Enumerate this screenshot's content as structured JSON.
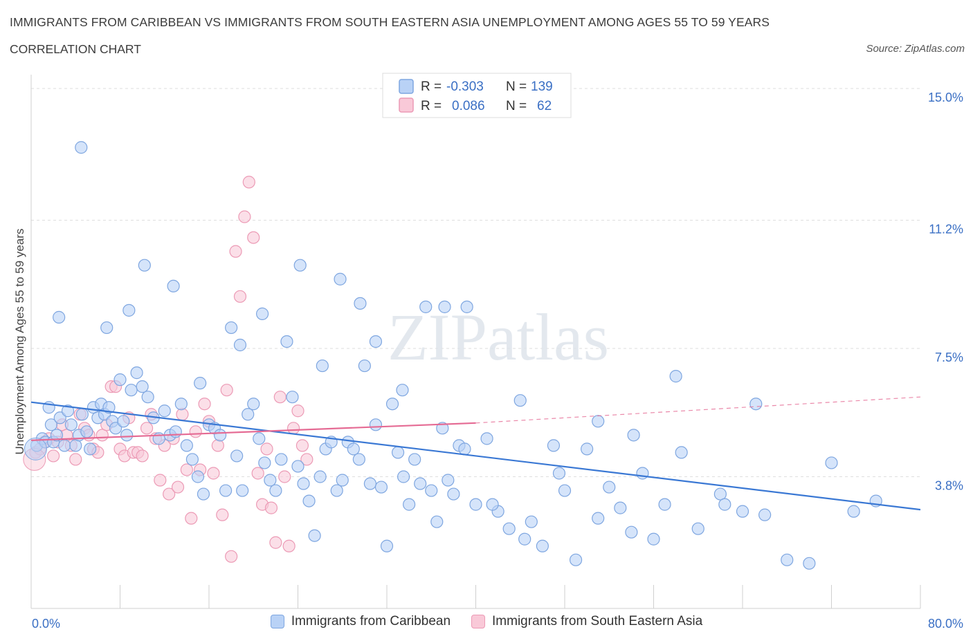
{
  "header": {
    "title": "IMMIGRANTS FROM CARIBBEAN VS IMMIGRANTS FROM SOUTH EASTERN ASIA UNEMPLOYMENT AMONG AGES 55 TO 59 YEARS",
    "subtitle": "CORRELATION CHART",
    "source": "Source: ZipAtlas.com"
  },
  "colors": {
    "blue_fill": "#b9d2f6",
    "blue_stroke": "#7ea6e0",
    "blue_line": "#3a78d4",
    "pink_fill": "#f9c9d8",
    "pink_stroke": "#ec9ab5",
    "pink_line": "#e56b94",
    "axis_label": "#3a6fc4"
  },
  "legend_top": {
    "rows": [
      {
        "r_label": "R =",
        "r_value": "-0.303",
        "n_label": "N =",
        "n_value": "139"
      },
      {
        "r_label": "R =",
        "r_value": "0.086",
        "n_label": "N =",
        "n_value": "62"
      }
    ]
  },
  "chart_data": {
    "type": "scatter",
    "ylabel": "Unemployment Among Ages 55 to 59 years",
    "x_tick_labels": [
      "0.0%",
      "80.0%"
    ],
    "y_tick_labels": [
      "15.0%",
      "11.2%",
      "7.5%",
      "3.8%"
    ],
    "y_ticks": [
      15.0,
      11.2,
      7.5,
      3.8
    ],
    "xlim": [
      0,
      80
    ],
    "ylim": [
      0,
      15.2
    ],
    "grid": "horizontal dashed",
    "watermark": "ZIPatlas",
    "series": [
      {
        "name": "Immigrants from Caribbean",
        "trend": {
          "x0": 0,
          "y0": 5.95,
          "x1": 80,
          "y1": 2.85,
          "dashed_to": 80
        },
        "points": [
          [
            0.5,
            4.7
          ],
          [
            1.0,
            4.9
          ],
          [
            1.3,
            4.8
          ],
          [
            1.6,
            5.8
          ],
          [
            1.8,
            5.3
          ],
          [
            2.0,
            4.8
          ],
          [
            2.3,
            5.0
          ],
          [
            2.6,
            5.5
          ],
          [
            3.0,
            4.7
          ],
          [
            3.3,
            5.7
          ],
          [
            3.6,
            5.3
          ],
          [
            4.0,
            4.7
          ],
          [
            4.3,
            5.0
          ],
          [
            4.6,
            5.6
          ],
          [
            5.0,
            5.1
          ],
          [
            5.3,
            4.6
          ],
          [
            5.6,
            5.8
          ],
          [
            6.0,
            5.5
          ],
          [
            6.3,
            5.9
          ],
          [
            6.6,
            5.6
          ],
          [
            7.0,
            5.8
          ],
          [
            7.3,
            5.4
          ],
          [
            7.6,
            5.2
          ],
          [
            8.0,
            6.6
          ],
          [
            8.3,
            5.4
          ],
          [
            8.6,
            5.0
          ],
          [
            9.0,
            6.3
          ],
          [
            9.5,
            6.8
          ],
          [
            10.0,
            6.4
          ],
          [
            10.5,
            6.1
          ],
          [
            11.0,
            5.5
          ],
          [
            11.5,
            4.9
          ],
          [
            12.0,
            5.7
          ],
          [
            12.5,
            5.0
          ],
          [
            13.0,
            5.1
          ],
          [
            13.5,
            5.9
          ],
          [
            14.0,
            4.7
          ],
          [
            14.5,
            4.3
          ],
          [
            15.0,
            3.8
          ],
          [
            15.5,
            3.3
          ],
          [
            16.0,
            5.3
          ],
          [
            16.5,
            5.2
          ],
          [
            17.0,
            5.0
          ],
          [
            17.5,
            3.4
          ],
          [
            18.0,
            8.1
          ],
          [
            18.5,
            4.4
          ],
          [
            19.0,
            3.4
          ],
          [
            19.5,
            5.6
          ],
          [
            20.0,
            5.9
          ],
          [
            20.5,
            4.9
          ],
          [
            21.0,
            4.2
          ],
          [
            21.5,
            3.7
          ],
          [
            22.0,
            3.4
          ],
          [
            22.5,
            4.3
          ],
          [
            23.0,
            7.7
          ],
          [
            23.5,
            6.1
          ],
          [
            24.0,
            4.1
          ],
          [
            24.5,
            3.6
          ],
          [
            25.0,
            3.1
          ],
          [
            25.5,
            2.1
          ],
          [
            26.0,
            3.8
          ],
          [
            26.5,
            4.6
          ],
          [
            27.0,
            4.8
          ],
          [
            27.5,
            3.4
          ],
          [
            28.0,
            3.7
          ],
          [
            28.5,
            4.8
          ],
          [
            29.0,
            4.6
          ],
          [
            29.5,
            4.3
          ],
          [
            30.0,
            7.0
          ],
          [
            30.5,
            3.6
          ],
          [
            31.0,
            5.3
          ],
          [
            31.5,
            3.5
          ],
          [
            32.0,
            1.8
          ],
          [
            32.5,
            5.9
          ],
          [
            33.0,
            4.5
          ],
          [
            33.5,
            3.8
          ],
          [
            34.0,
            3.0
          ],
          [
            34.5,
            4.3
          ],
          [
            35.0,
            3.6
          ],
          [
            35.5,
            8.7
          ],
          [
            36.0,
            3.4
          ],
          [
            36.5,
            2.5
          ],
          [
            37.0,
            5.2
          ],
          [
            37.5,
            3.7
          ],
          [
            38.0,
            3.3
          ],
          [
            38.5,
            4.7
          ],
          [
            39.0,
            4.6
          ],
          [
            40.0,
            3.0
          ],
          [
            41.0,
            4.9
          ],
          [
            42.0,
            2.8
          ],
          [
            43.0,
            2.3
          ],
          [
            44.0,
            6.0
          ],
          [
            45.0,
            2.5
          ],
          [
            46.0,
            1.8
          ],
          [
            47.0,
            4.7
          ],
          [
            48.0,
            3.4
          ],
          [
            49.0,
            1.4
          ],
          [
            50.0,
            4.6
          ],
          [
            51.0,
            2.6
          ],
          [
            52.0,
            3.5
          ],
          [
            53.0,
            2.9
          ],
          [
            54.0,
            2.2
          ],
          [
            55.0,
            3.9
          ],
          [
            56.0,
            2.0
          ],
          [
            57.0,
            3.0
          ],
          [
            58.0,
            6.7
          ],
          [
            60.0,
            2.3
          ],
          [
            62.0,
            3.3
          ],
          [
            64.0,
            2.8
          ],
          [
            66.0,
            2.7
          ],
          [
            68.0,
            1.4
          ],
          [
            70.0,
            1.3
          ],
          [
            72.0,
            4.2
          ],
          [
            74.0,
            2.8
          ],
          [
            76.0,
            3.1
          ],
          [
            2.5,
            8.4
          ],
          [
            4.5,
            13.3
          ],
          [
            6.8,
            8.1
          ],
          [
            8.8,
            8.6
          ],
          [
            10.2,
            9.9
          ],
          [
            12.8,
            9.3
          ],
          [
            15.2,
            6.5
          ],
          [
            18.8,
            7.6
          ],
          [
            20.8,
            8.5
          ],
          [
            24.2,
            9.9
          ],
          [
            26.2,
            7.0
          ],
          [
            27.8,
            9.5
          ],
          [
            29.6,
            8.8
          ],
          [
            31.0,
            7.7
          ],
          [
            33.4,
            6.3
          ],
          [
            37.2,
            8.7
          ],
          [
            39.2,
            8.7
          ],
          [
            41.5,
            3.0
          ],
          [
            44.4,
            2.0
          ],
          [
            47.5,
            3.9
          ],
          [
            51.0,
            5.4
          ],
          [
            54.2,
            5.0
          ],
          [
            58.5,
            4.5
          ],
          [
            62.4,
            3.0
          ],
          [
            65.2,
            5.9
          ]
        ]
      },
      {
        "name": "Immigrants from South Eastern Asia",
        "trend": {
          "x0": 0,
          "y0": 4.85,
          "x1": 40,
          "y1": 5.35,
          "dashed_to": 80,
          "dashed_y1": 6.1
        },
        "points": [
          [
            0.4,
            4.5
          ],
          [
            0.8,
            4.6
          ],
          [
            1.2,
            4.8
          ],
          [
            1.6,
            4.9
          ],
          [
            2.0,
            4.4
          ],
          [
            2.4,
            4.8
          ],
          [
            2.8,
            5.3
          ],
          [
            3.2,
            5.0
          ],
          [
            3.6,
            4.7
          ],
          [
            4.0,
            4.3
          ],
          [
            4.4,
            5.6
          ],
          [
            4.8,
            5.2
          ],
          [
            5.2,
            5.0
          ],
          [
            5.6,
            4.6
          ],
          [
            6.0,
            4.5
          ],
          [
            6.4,
            5.0
          ],
          [
            6.8,
            5.3
          ],
          [
            7.2,
            6.4
          ],
          [
            7.6,
            6.4
          ],
          [
            8.0,
            4.6
          ],
          [
            8.4,
            4.4
          ],
          [
            8.8,
            5.5
          ],
          [
            9.2,
            4.5
          ],
          [
            9.6,
            4.5
          ],
          [
            10.0,
            4.4
          ],
          [
            10.4,
            5.2
          ],
          [
            10.8,
            5.6
          ],
          [
            11.2,
            4.9
          ],
          [
            11.6,
            3.7
          ],
          [
            12.0,
            4.7
          ],
          [
            12.4,
            3.3
          ],
          [
            12.8,
            4.9
          ],
          [
            13.2,
            3.5
          ],
          [
            13.6,
            5.6
          ],
          [
            14.0,
            4.0
          ],
          [
            14.4,
            2.6
          ],
          [
            14.8,
            5.1
          ],
          [
            15.2,
            4.0
          ],
          [
            15.6,
            5.9
          ],
          [
            16.0,
            5.4
          ],
          [
            16.4,
            3.9
          ],
          [
            16.8,
            4.7
          ],
          [
            17.2,
            2.7
          ],
          [
            17.6,
            6.3
          ],
          [
            18.0,
            1.5
          ],
          [
            18.4,
            10.3
          ],
          [
            18.8,
            9.0
          ],
          [
            19.2,
            11.3
          ],
          [
            19.6,
            12.3
          ],
          [
            20.0,
            10.7
          ],
          [
            20.4,
            3.9
          ],
          [
            20.8,
            3.0
          ],
          [
            21.2,
            4.6
          ],
          [
            21.6,
            2.9
          ],
          [
            22.0,
            1.9
          ],
          [
            22.4,
            6.1
          ],
          [
            22.8,
            3.8
          ],
          [
            23.2,
            1.8
          ],
          [
            23.6,
            5.2
          ],
          [
            24.0,
            5.7
          ],
          [
            24.4,
            4.7
          ],
          [
            24.8,
            4.3
          ]
        ]
      }
    ]
  }
}
